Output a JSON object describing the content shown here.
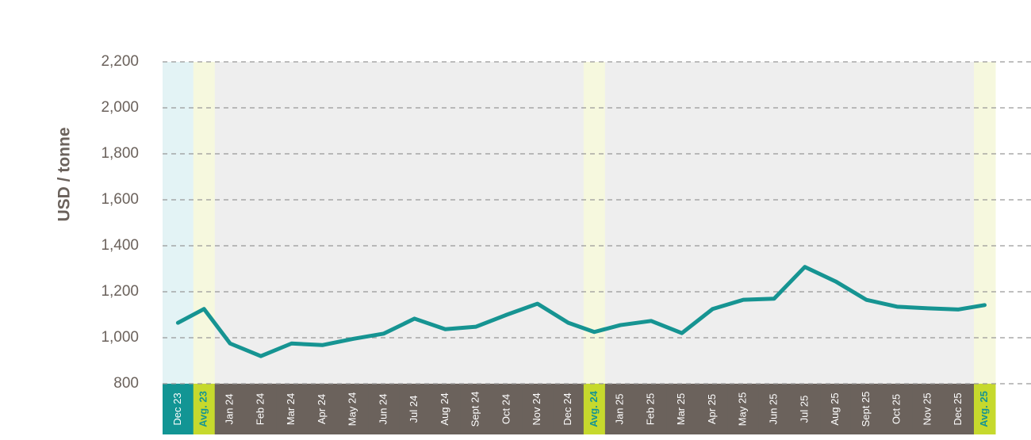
{
  "chart_data": {
    "type": "line",
    "y_label": "USD / tonne",
    "categories": [
      "Dec 23",
      "Avg. 23",
      "Jan 24",
      "Feb 24",
      "Mar 24",
      "Apr 24",
      "May 24",
      "Jun 24",
      "Jul 24",
      "Aug 24",
      "Sept 24",
      "Oct 24",
      "Nov 24",
      "Dec 24",
      "Avg. 24",
      "Jan 25",
      "Feb 25",
      "Mar 25",
      "Apr 25",
      "May 25",
      "Jun 25",
      "Jul 25",
      "Aug 25",
      "Sept 25",
      "Oct 25",
      "Nov 25",
      "Dec 25",
      "Avg. 25"
    ],
    "values": [
      1065,
      1125,
      975,
      920,
      975,
      968,
      995,
      1018,
      1083,
      1037,
      1048,
      1100,
      1148,
      1065,
      1025,
      1055,
      1073,
      1020,
      1125,
      1165,
      1170,
      1308,
      1245,
      1165,
      1135,
      1128,
      1123,
      1142
    ],
    "color": "#169492",
    "ylim": [
      800,
      2200
    ],
    "yticks": [
      800,
      {
        "value": 1000,
        "label": "1,000"
      },
      {
        "value": 1200,
        "label": "1,200"
      },
      {
        "value": 1400,
        "label": "1,400"
      },
      {
        "value": 1600,
        "label": "1,600"
      },
      {
        "value": 1800,
        "label": "1,800"
      },
      {
        "value": 2000,
        "label": "2,000"
      },
      {
        "value": 2200,
        "label": "2,200"
      }
    ],
    "grid": true
  }
}
